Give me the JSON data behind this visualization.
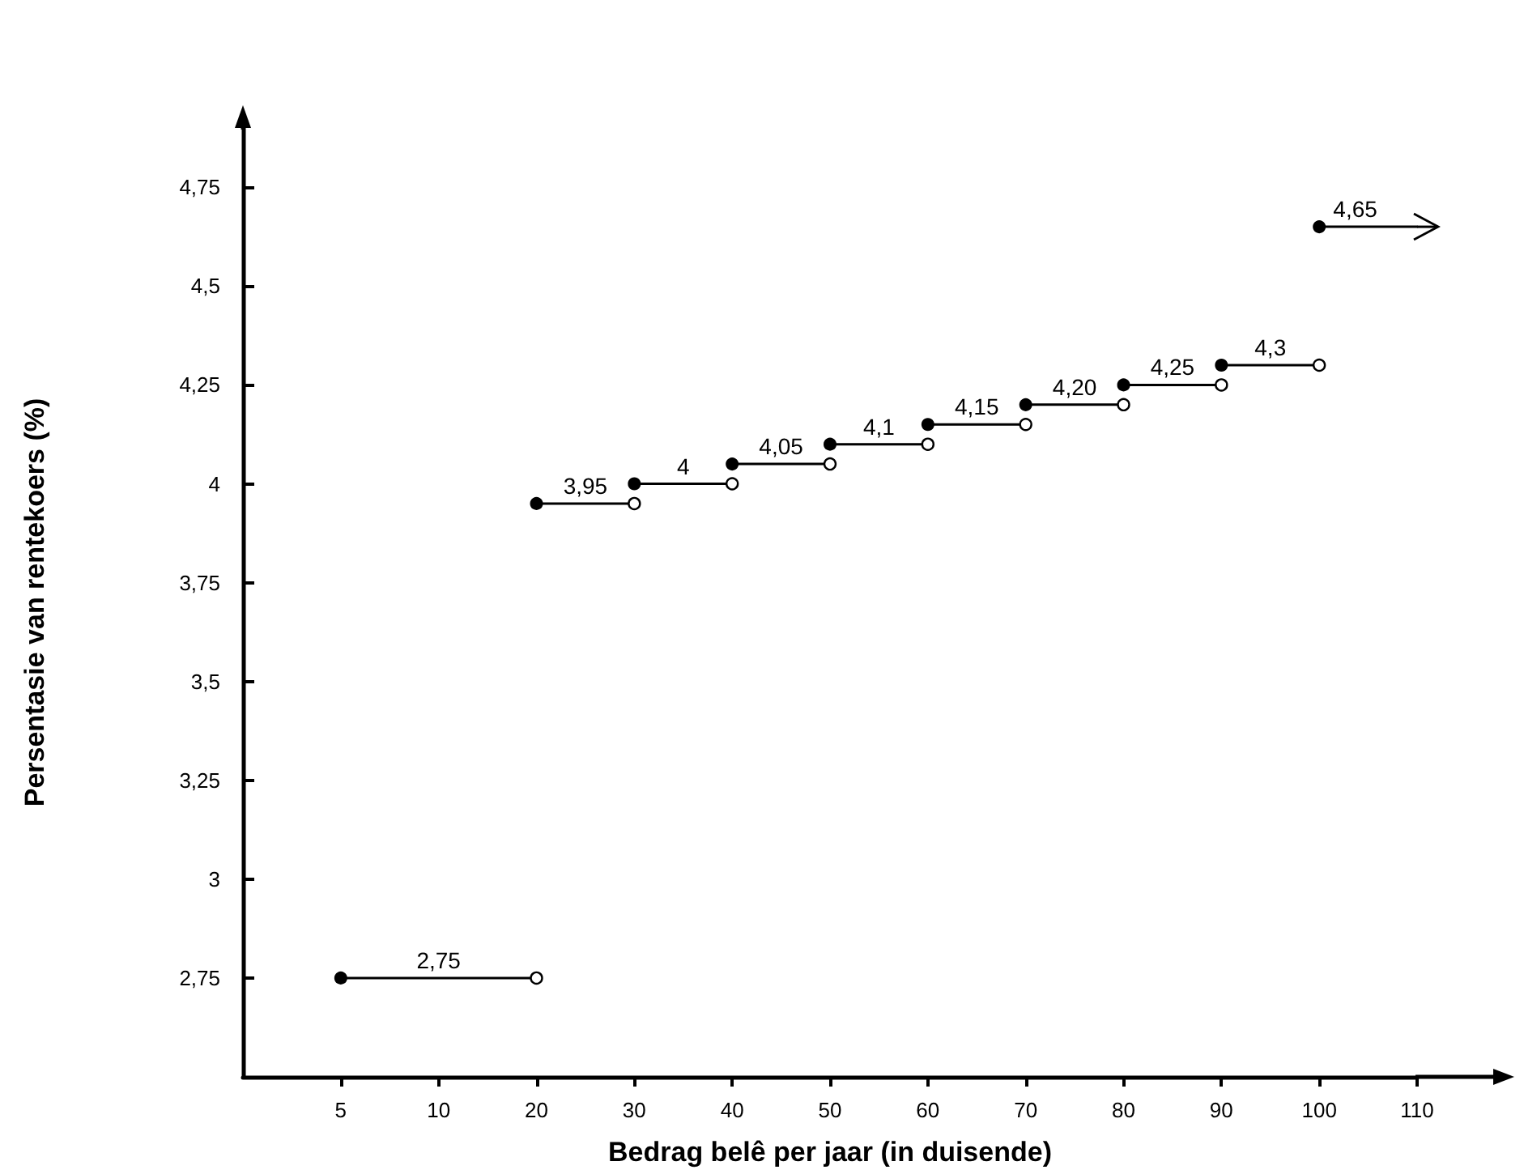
{
  "chart_data": {
    "type": "line",
    "xlabel": "Bedrag belê per jaar (in duisende)",
    "ylabel": "Persentasie van rentekoers (%)",
    "categories": [
      null,
      "5",
      "10",
      "20",
      "30",
      "40",
      "50",
      "60",
      "70",
      "80",
      "90",
      "100",
      "110"
    ],
    "ylim": [
      2.5,
      4.9
    ],
    "yticks": [
      {
        "value": 2.75,
        "label": "2,75"
      },
      3,
      {
        "value": 3.25,
        "label": "3,25"
      },
      {
        "value": 3.5,
        "label": "3,5"
      },
      {
        "value": 3.75,
        "label": "3,75"
      },
      4,
      {
        "value": 4.25,
        "label": "4,25"
      },
      {
        "value": 4.5,
        "label": "4,5"
      },
      {
        "value": 4.75,
        "label": "4,75"
      }
    ],
    "grid": false,
    "legend": false,
    "marker": "circle",
    "line_style": "solid",
    "series": [
      {
        "name": "2,75",
        "color": "#000000",
        "x": [
          "5",
          "20"
        ],
        "values": [
          2.75,
          2.75
        ]
      },
      {
        "name": "3,95",
        "color": "#000000",
        "x": [
          "20",
          "30"
        ],
        "values": [
          3.95,
          3.95
        ]
      },
      {
        "name": "4",
        "color": "#000000",
        "x": [
          "30",
          "40"
        ],
        "values": [
          4,
          4
        ]
      },
      {
        "name": "4,05",
        "color": "#000000",
        "x": [
          "40",
          "50"
        ],
        "values": [
          4.05,
          4.05
        ]
      },
      {
        "name": "4,1",
        "color": "#000000",
        "x": [
          "50",
          "60"
        ],
        "values": [
          4.1,
          4.1
        ]
      },
      {
        "name": "4,15",
        "color": "#000000",
        "x": [
          "60",
          "70"
        ],
        "values": [
          4.15,
          4.15
        ]
      },
      {
        "name": "4,20",
        "color": "#000000",
        "x": [
          "70",
          "80"
        ],
        "values": [
          4.2,
          4.2
        ]
      },
      {
        "name": "4,25",
        "color": "#000000",
        "x": [
          "80",
          "90"
        ],
        "values": [
          4.25,
          4.25
        ]
      },
      {
        "name": "4,3",
        "color": "#000000",
        "x": [
          "90",
          "100"
        ],
        "values": [
          4.3,
          4.3
        ]
      },
      {
        "name": "4,65",
        "color": "#000000",
        "x": [
          "100",
          "110"
        ],
        "values": [
          4.65,
          4.65
        ]
      }
    ]
  }
}
